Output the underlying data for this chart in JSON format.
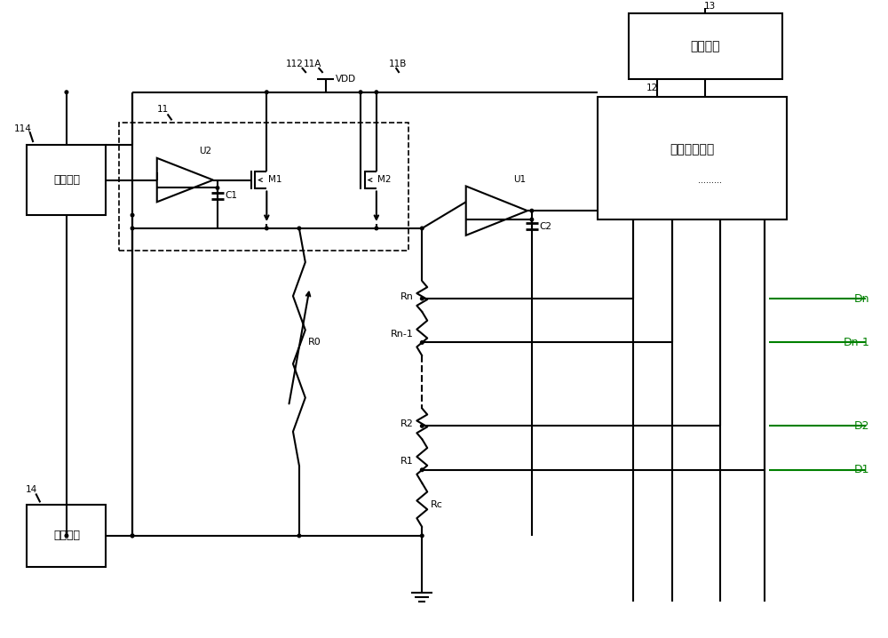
{
  "bg_color": "#ffffff",
  "line_color": "#000000",
  "lw": 1.5,
  "fig_w": 10.0,
  "fig_h": 7.18,
  "labels": {
    "bandgap": "带隙基准",
    "compensate": "补偿模块",
    "sar": "逐次递近逻辑",
    "clock": "时钟信号",
    "U1": "U1",
    "U2": "U2",
    "M1": "M1",
    "M2": "M2",
    "C1": "C1",
    "C2": "C2",
    "R0": "R0",
    "Rn": "Rn",
    "Rn1": "Rn-1",
    "R2": "R2",
    "R1": "R1",
    "Rc": "Rc",
    "VDD": "VDD",
    "n11": "11",
    "n11A": "11A",
    "n11B": "11B",
    "n112": "112",
    "n114": "114",
    "n12": "12",
    "n13": "13",
    "n14": "14",
    "Dn": "Dn",
    "Dn1": "Dn-1",
    "D2": "D2",
    "D1": "D1",
    "dots": "........."
  },
  "colors": {
    "green": "#008000"
  }
}
